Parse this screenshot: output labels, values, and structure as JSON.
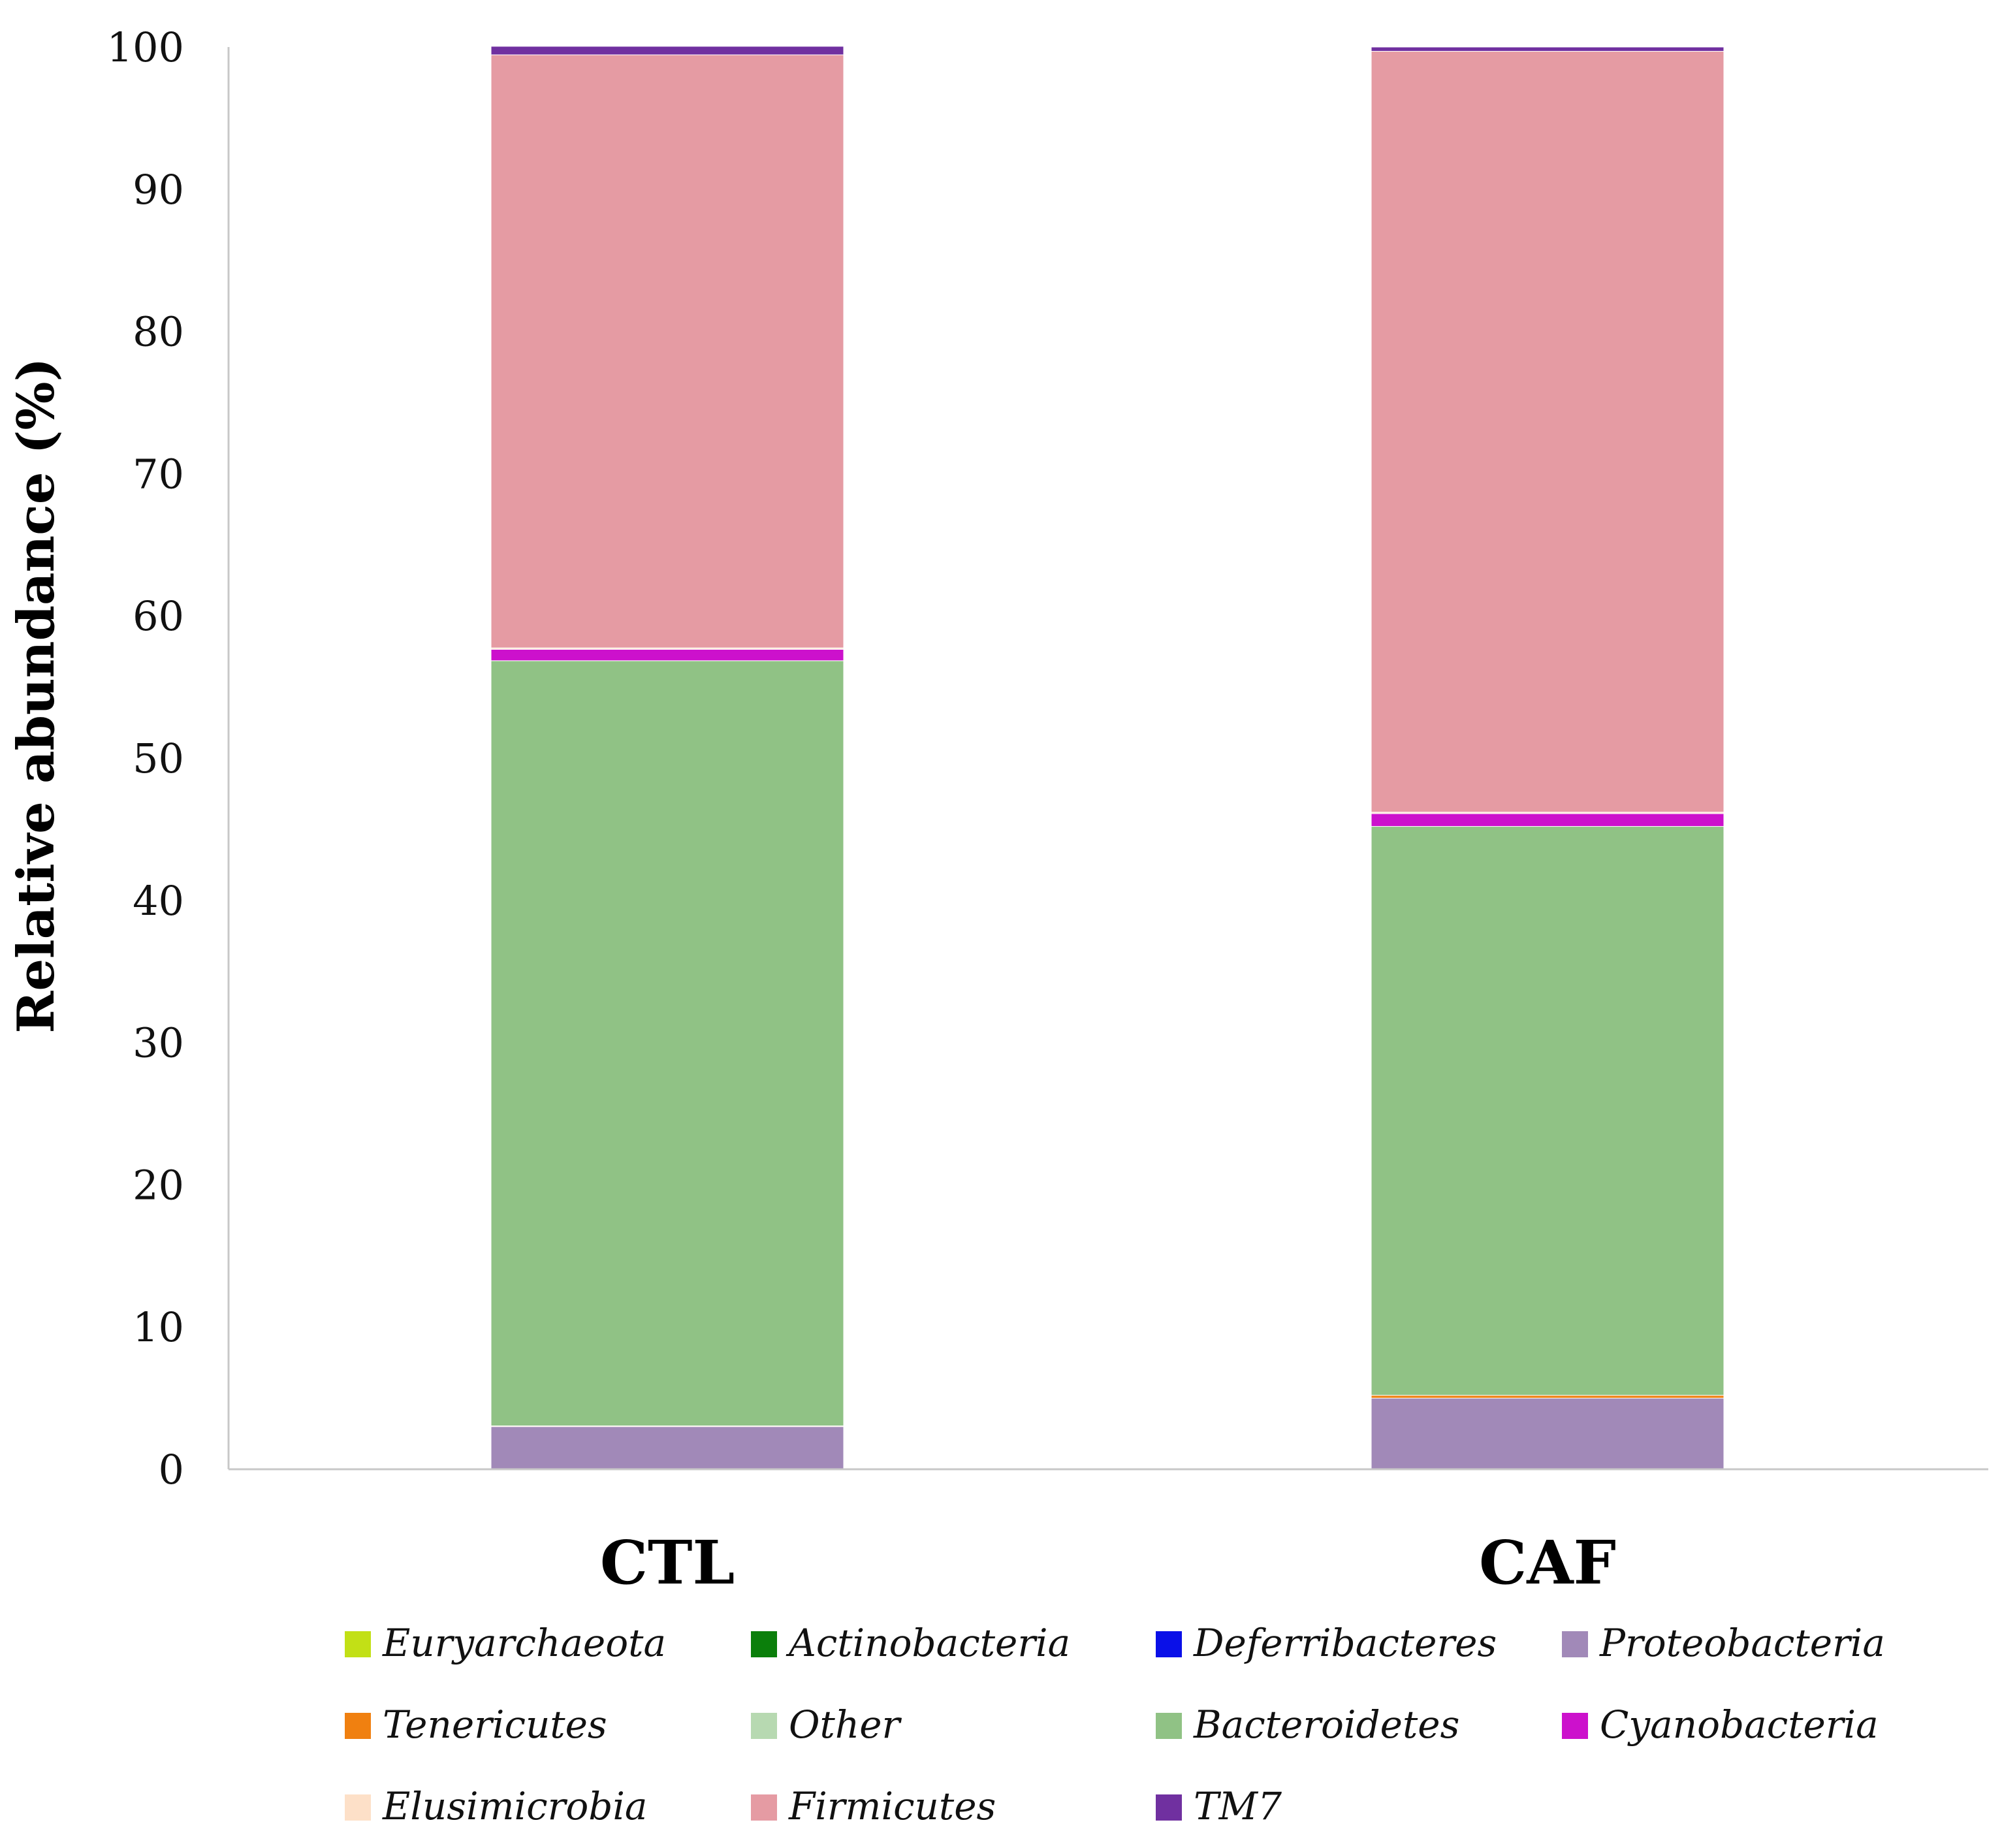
{
  "chart_data": {
    "type": "bar",
    "stacked": true,
    "title": "",
    "xlabel": "",
    "ylabel": "Relative abundance (%)",
    "ylim": [
      0,
      100
    ],
    "yticks": [
      0,
      10,
      20,
      30,
      40,
      50,
      60,
      70,
      80,
      90,
      100
    ],
    "categories": [
      "CTL",
      "CAF"
    ],
    "series": [
      {
        "name": "Euryarchaeota",
        "color": "#c2e016",
        "values": [
          0.0,
          0.0
        ]
      },
      {
        "name": "Actinobacteria",
        "color": "#0b7f0b",
        "values": [
          0.0,
          0.0
        ]
      },
      {
        "name": "Deferribacteres",
        "color": "#0a10e8",
        "values": [
          0.0,
          0.0
        ]
      },
      {
        "name": "Proteobacteria",
        "color": "#a189b8",
        "values": [
          3.0,
          5.0
        ]
      },
      {
        "name": "Tenericutes",
        "color": "#f08010",
        "values": [
          0.05,
          0.2
        ]
      },
      {
        "name": "Other",
        "color": "#b7d9b1",
        "values": [
          0.0,
          0.0
        ]
      },
      {
        "name": "Bacteroidetes",
        "color": "#90c285",
        "values": [
          53.8,
          40.0
        ]
      },
      {
        "name": "Cyanobacteria",
        "color": "#cc11cc",
        "values": [
          0.8,
          0.9
        ]
      },
      {
        "name": "Elusimicrobia",
        "color": "#fde0c8",
        "values": [
          0.1,
          0.1
        ]
      },
      {
        "name": "Firmicutes",
        "color": "#e59ba3",
        "values": [
          41.7,
          53.5
        ]
      },
      {
        "name": "TM7",
        "color": "#7030a0",
        "values": [
          0.6,
          0.3
        ]
      }
    ]
  }
}
